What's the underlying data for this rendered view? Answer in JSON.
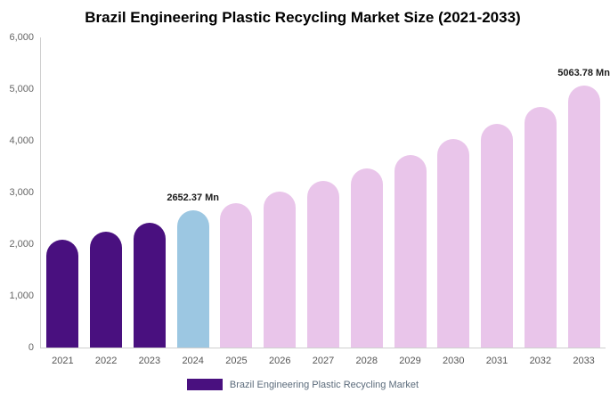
{
  "title": "Brazil Engineering Plastic Recycling Market Size (2021-2033)",
  "legend": {
    "label": "Brazil Engineering Plastic Recycling Market",
    "swatch_color": "#49107f"
  },
  "colors": {
    "dark_purple": "#49107f",
    "light_blue": "#9cc7e2",
    "light_pink": "#e9c5ea",
    "axis_line": "#cfcfcf"
  },
  "chart_data": {
    "type": "bar",
    "title": "Brazil Engineering Plastic Recycling Market Size (2021-2033)",
    "categories": [
      "2021",
      "2022",
      "2023",
      "2024",
      "2025",
      "2026",
      "2027",
      "2028",
      "2029",
      "2030",
      "2031",
      "2032",
      "2033"
    ],
    "values": [
      2080,
      2250,
      2420,
      2652.37,
      2800,
      3010,
      3230,
      3470,
      3730,
      4030,
      4330,
      4660,
      5063.78
    ],
    "bar_colors": [
      "#49107f",
      "#49107f",
      "#49107f",
      "#9cc7e2",
      "#e9c5ea",
      "#e9c5ea",
      "#e9c5ea",
      "#e9c5ea",
      "#e9c5ea",
      "#e9c5ea",
      "#e9c5ea",
      "#e9c5ea",
      "#e9c5ea"
    ],
    "annotations": [
      {
        "category": "2024",
        "index": 3,
        "text": "2652.37 Mn"
      },
      {
        "category": "2033",
        "index": 12,
        "text": "5063.78 Mn"
      }
    ],
    "xlabel": "",
    "ylabel": "",
    "ylim": [
      0,
      6000
    ],
    "yticks": [
      {
        "value": 6000,
        "label": "6,000"
      },
      {
        "value": 5000,
        "label": "5,000"
      },
      {
        "value": 4000,
        "label": "4,000"
      },
      {
        "value": 3000,
        "label": "3,000"
      },
      {
        "value": 2000,
        "label": "2,000"
      },
      {
        "value": 1000,
        "label": "1,000"
      },
      {
        "value": 0,
        "label": "0"
      }
    ],
    "grid": false,
    "legend_position": "bottom"
  }
}
